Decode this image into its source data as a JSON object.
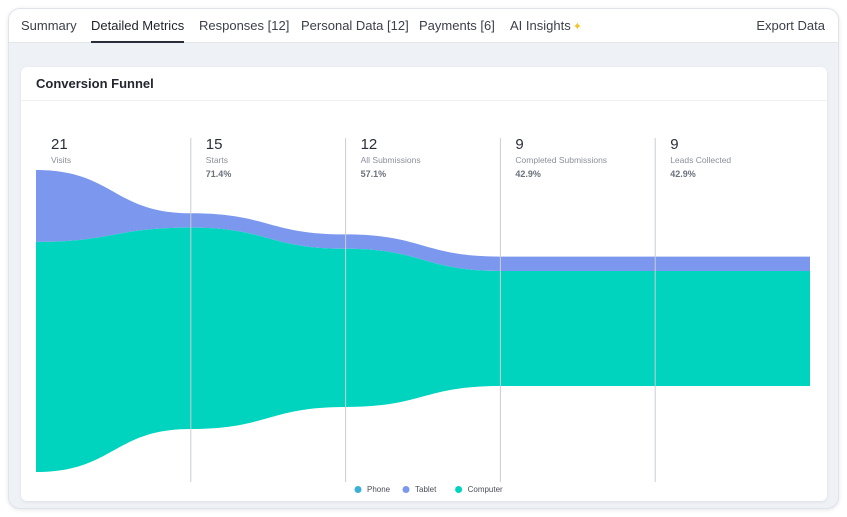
{
  "tabs": [
    {
      "label": "Summary"
    },
    {
      "label": "Detailed Metrics",
      "active": true
    },
    {
      "label": "Responses [12]"
    },
    {
      "label": "Personal Data [12]"
    },
    {
      "label": "Payments [6]"
    },
    {
      "label": "AI Insights",
      "icon": "sparkle-icon"
    }
  ],
  "export_label": "Export Data",
  "card": {
    "title": "Conversion Funnel"
  },
  "chart_data": {
    "type": "area",
    "title": "Conversion Funnel",
    "stages": [
      {
        "value": "21",
        "label": "Visits",
        "percent": ""
      },
      {
        "value": "15",
        "label": "Starts",
        "percent": "71.4%"
      },
      {
        "value": "12",
        "label": "All Submissions",
        "percent": "57.1%"
      },
      {
        "value": "9",
        "label": "Completed Submissions",
        "percent": "42.9%"
      },
      {
        "value": "9",
        "label": "Leads Collected",
        "percent": "42.9%"
      }
    ],
    "categories": [
      "Visits",
      "Starts",
      "All Submissions",
      "Completed Submissions",
      "Leads Collected"
    ],
    "series": [
      {
        "name": "Phone",
        "values": [
          0,
          0,
          0,
          0,
          0
        ],
        "color": "#3bb0d8"
      },
      {
        "name": "Tablet",
        "values": [
          5,
          1,
          1,
          1,
          1
        ],
        "color": "#7b98ee"
      },
      {
        "name": "Computer",
        "values": [
          16,
          14,
          11,
          8,
          8
        ],
        "color": "#00d4be"
      }
    ],
    "grid": true,
    "legend_position": "bottom-center"
  }
}
